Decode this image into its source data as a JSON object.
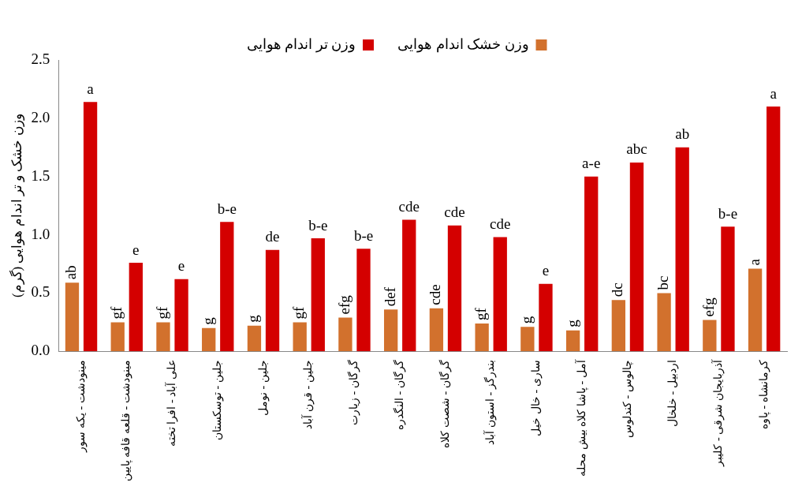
{
  "chart_data": {
    "type": "bar",
    "ylabel": "وزن خشک و تر اندام هوایی (گرم)",
    "categories": [
      "مینودشت - یکه سور",
      "مینودشت - قلعه قافه پایین",
      "علی آباد - افرا تخته",
      "جلین - توسکستان",
      "جلین - نومل",
      "جلین - قرن آباد",
      "گرگان - زیارت",
      "گرگان - النگدره",
      "گرگان - شصت کلاه",
      "بندرگز - استون آباد",
      "ساری - خال خیل",
      "آمل - پاشا کلاه بیش محله",
      "چالوس - کندلوس",
      "اردبیل - خلخال",
      "آذربایجان شرقی - کلیبر",
      "کرمانشاه - پاوه"
    ],
    "series": [
      {
        "name": "وزن خشک اندام هوایی",
        "color": "#d2712d",
        "values": [
          0.59,
          0.25,
          0.25,
          0.2,
          0.22,
          0.25,
          0.29,
          0.36,
          0.37,
          0.24,
          0.21,
          0.18,
          0.44,
          0.5,
          0.27,
          0.71
        ],
        "value_labels": [
          "ab",
          "gf",
          "gf",
          "g",
          "g",
          "gf",
          "efg",
          "def",
          "cde",
          "gf",
          "g",
          "g",
          "dc",
          "bc",
          "efg",
          "a"
        ]
      },
      {
        "name": "وزن تر اندام هوایی",
        "color": "#d40000",
        "values": [
          2.14,
          0.76,
          0.62,
          1.11,
          0.87,
          0.97,
          0.88,
          1.13,
          1.08,
          0.98,
          0.58,
          1.5,
          1.62,
          1.75,
          1.07,
          2.1
        ],
        "value_labels": [
          "a",
          "e",
          "e",
          "b-e",
          "de",
          "b-e",
          "b-e",
          "cde",
          "cde",
          "cde",
          "e",
          "a-e",
          "abc",
          "ab",
          "b-e",
          "a"
        ]
      }
    ],
    "ylim": [
      0,
      2.5
    ],
    "yticks": [
      {
        "value": 0,
        "label": "0.0"
      },
      {
        "value": 0.5,
        "label": "0.5"
      },
      {
        "value": 1,
        "label": "1.0"
      },
      {
        "value": 1.5,
        "label": "1.5"
      },
      {
        "value": 2,
        "label": "2.0"
      },
      {
        "value": 2.5,
        "label": "2.5"
      }
    ],
    "grid": false,
    "legend": "top"
  }
}
